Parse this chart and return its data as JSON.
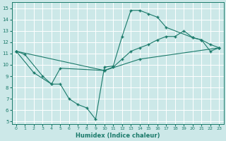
{
  "xlabel": "Humidex (Indice chaleur)",
  "bg_color": "#cce8e8",
  "grid_color": "#ffffff",
  "line_color": "#1a7a6a",
  "xlim": [
    -0.5,
    23.5
  ],
  "ylim": [
    4.8,
    15.5
  ],
  "xticks": [
    0,
    1,
    2,
    3,
    4,
    5,
    6,
    7,
    8,
    9,
    10,
    11,
    12,
    13,
    14,
    15,
    16,
    17,
    18,
    19,
    20,
    21,
    22,
    23
  ],
  "yticks": [
    5,
    6,
    7,
    8,
    9,
    10,
    11,
    12,
    13,
    14,
    15
  ],
  "line1_x": [
    0,
    1,
    3,
    4,
    5,
    6,
    7,
    8,
    9,
    10,
    11,
    12,
    13,
    14,
    15,
    16,
    17,
    20,
    21,
    22,
    23
  ],
  "line1_y": [
    11.2,
    10.9,
    9.0,
    8.3,
    8.3,
    7.0,
    6.5,
    6.2,
    5.2,
    9.8,
    9.9,
    12.5,
    14.8,
    14.8,
    14.5,
    14.2,
    13.3,
    12.4,
    12.2,
    11.2,
    11.5
  ],
  "line2_x": [
    0,
    2,
    4,
    5,
    10,
    11,
    12,
    13,
    14,
    15,
    16,
    17,
    18,
    19,
    20,
    21,
    22,
    23
  ],
  "line2_y": [
    11.2,
    9.3,
    8.3,
    9.7,
    9.5,
    9.8,
    10.5,
    11.2,
    11.5,
    11.8,
    12.2,
    12.5,
    12.5,
    13.0,
    12.4,
    12.2,
    11.8,
    11.5
  ],
  "line3_x": [
    0,
    10,
    14,
    23
  ],
  "line3_y": [
    11.2,
    9.5,
    10.5,
    11.5
  ]
}
